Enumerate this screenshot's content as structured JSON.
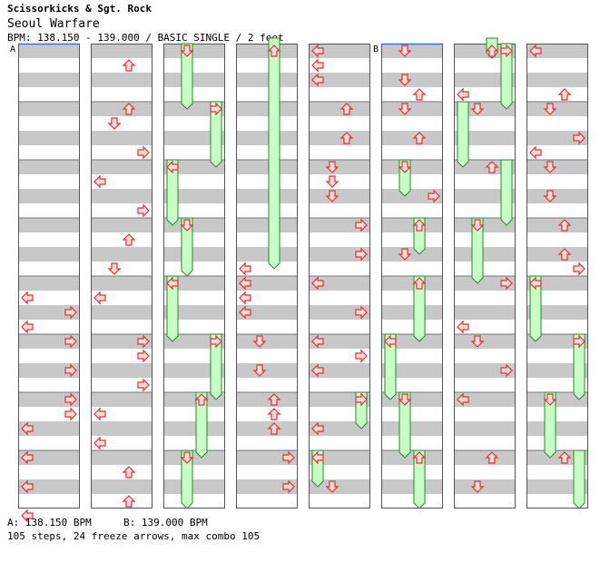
{
  "header": {
    "artist": "Scissorkicks & Sgt. Rock",
    "title": "Seoul Warfare",
    "info": "BPM: 138.150 - 139.000 / BASIC SINGLE / 2 feet"
  },
  "footer": {
    "bpm_a": "A: 138.150 BPM",
    "bpm_b": "B: 139.000 BPM",
    "stats": "105 steps, 24 freeze arrows, max combo 105"
  },
  "markers": [
    {
      "label": "A",
      "column": 0,
      "beat": 0
    },
    {
      "label": "B",
      "column": 5,
      "beat": 0
    }
  ],
  "colors": {
    "stripe": "#c8c8c8",
    "column_border": "#555555",
    "arrow_fill": "#ffdcdc",
    "arrow_stroke": "#e03030",
    "freeze_fill": "#c8ffc8",
    "freeze_stroke": "#2a8a2a",
    "bpm_line": "#3a6fd8"
  },
  "chart_data": {
    "type": "step-chart",
    "lanes": [
      "left",
      "down",
      "up",
      "right"
    ],
    "columns": 8,
    "beats_per_column": 32,
    "measures_per_column": 8,
    "notes": [
      {
        "c": 0,
        "lane": "left",
        "beat": 17
      },
      {
        "c": 0,
        "lane": "right",
        "beat": 18
      },
      {
        "c": 0,
        "lane": "left",
        "beat": 19
      },
      {
        "c": 0,
        "lane": "right",
        "beat": 20
      },
      {
        "c": 0,
        "lane": "right",
        "beat": 22
      },
      {
        "c": 0,
        "lane": "right",
        "beat": 24
      },
      {
        "c": 0,
        "lane": "right",
        "beat": 25
      },
      {
        "c": 0,
        "lane": "left",
        "beat": 26
      },
      {
        "c": 0,
        "lane": "left",
        "beat": 28
      },
      {
        "c": 0,
        "lane": "left",
        "beat": 30
      },
      {
        "c": 0,
        "lane": "left",
        "beat": 32
      },
      {
        "c": 1,
        "lane": "up",
        "beat": 1
      },
      {
        "c": 1,
        "lane": "up",
        "beat": 4
      },
      {
        "c": 1,
        "lane": "down",
        "beat": 5
      },
      {
        "c": 1,
        "lane": "right",
        "beat": 7
      },
      {
        "c": 1,
        "lane": "left",
        "beat": 9
      },
      {
        "c": 1,
        "lane": "right",
        "beat": 11
      },
      {
        "c": 1,
        "lane": "up",
        "beat": 13
      },
      {
        "c": 1,
        "lane": "down",
        "beat": 15
      },
      {
        "c": 1,
        "lane": "left",
        "beat": 17
      },
      {
        "c": 1,
        "lane": "right",
        "beat": 20
      },
      {
        "c": 1,
        "lane": "right",
        "beat": 21
      },
      {
        "c": 1,
        "lane": "right",
        "beat": 23
      },
      {
        "c": 1,
        "lane": "left",
        "beat": 25
      },
      {
        "c": 1,
        "lane": "left",
        "beat": 27
      },
      {
        "c": 1,
        "lane": "up",
        "beat": 29
      },
      {
        "c": 1,
        "lane": "up",
        "beat": 31
      },
      {
        "c": 2,
        "lane": "down",
        "beat": 0
      },
      {
        "c": 2,
        "lane": "right",
        "beat": 4
      },
      {
        "c": 2,
        "lane": "left",
        "beat": 8
      },
      {
        "c": 2,
        "lane": "down",
        "beat": 12
      },
      {
        "c": 2,
        "lane": "left",
        "beat": 16
      },
      {
        "c": 2,
        "lane": "right",
        "beat": 20
      },
      {
        "c": 2,
        "lane": "up",
        "beat": 24
      },
      {
        "c": 2,
        "lane": "down",
        "beat": 28
      },
      {
        "c": 3,
        "lane": "up",
        "beat": 0
      },
      {
        "c": 3,
        "lane": "left",
        "beat": 15
      },
      {
        "c": 3,
        "lane": "left",
        "beat": 16
      },
      {
        "c": 3,
        "lane": "left",
        "beat": 17
      },
      {
        "c": 3,
        "lane": "left",
        "beat": 18
      },
      {
        "c": 3,
        "lane": "down",
        "beat": 20
      },
      {
        "c": 3,
        "lane": "down",
        "beat": 22
      },
      {
        "c": 3,
        "lane": "up",
        "beat": 24
      },
      {
        "c": 3,
        "lane": "up",
        "beat": 25
      },
      {
        "c": 3,
        "lane": "up",
        "beat": 26
      },
      {
        "c": 3,
        "lane": "right",
        "beat": 28
      },
      {
        "c": 3,
        "lane": "right",
        "beat": 30
      },
      {
        "c": 4,
        "lane": "left",
        "beat": 0
      },
      {
        "c": 4,
        "lane": "left",
        "beat": 1
      },
      {
        "c": 4,
        "lane": "left",
        "beat": 2
      },
      {
        "c": 4,
        "lane": "up",
        "beat": 4
      },
      {
        "c": 4,
        "lane": "up",
        "beat": 6
      },
      {
        "c": 4,
        "lane": "down",
        "beat": 8
      },
      {
        "c": 4,
        "lane": "down",
        "beat": 9
      },
      {
        "c": 4,
        "lane": "down",
        "beat": 10
      },
      {
        "c": 4,
        "lane": "right",
        "beat": 12
      },
      {
        "c": 4,
        "lane": "right",
        "beat": 14
      },
      {
        "c": 4,
        "lane": "left",
        "beat": 16
      },
      {
        "c": 4,
        "lane": "right",
        "beat": 18
      },
      {
        "c": 4,
        "lane": "left",
        "beat": 20
      },
      {
        "c": 4,
        "lane": "right",
        "beat": 21
      },
      {
        "c": 4,
        "lane": "left",
        "beat": 22
      },
      {
        "c": 4,
        "lane": "right",
        "beat": 24
      },
      {
        "c": 4,
        "lane": "left",
        "beat": 26
      },
      {
        "c": 4,
        "lane": "left",
        "beat": 28
      },
      {
        "c": 4,
        "lane": "down",
        "beat": 30
      },
      {
        "c": 5,
        "lane": "down",
        "beat": 0
      },
      {
        "c": 5,
        "lane": "down",
        "beat": 2
      },
      {
        "c": 5,
        "lane": "up",
        "beat": 3
      },
      {
        "c": 5,
        "lane": "down",
        "beat": 4
      },
      {
        "c": 5,
        "lane": "up",
        "beat": 6
      },
      {
        "c": 5,
        "lane": "down",
        "beat": 8
      },
      {
        "c": 5,
        "lane": "right",
        "beat": 10
      },
      {
        "c": 5,
        "lane": "up",
        "beat": 12
      },
      {
        "c": 5,
        "lane": "down",
        "beat": 14
      },
      {
        "c": 5,
        "lane": "up",
        "beat": 16
      },
      {
        "c": 5,
        "lane": "left",
        "beat": 20
      },
      {
        "c": 5,
        "lane": "down",
        "beat": 24
      },
      {
        "c": 5,
        "lane": "up",
        "beat": 28
      },
      {
        "c": 6,
        "lane": "up",
        "beat": 0
      },
      {
        "c": 6,
        "lane": "right",
        "beat": 0
      },
      {
        "c": 6,
        "lane": "left",
        "beat": 3
      },
      {
        "c": 6,
        "lane": "down",
        "beat": 4
      },
      {
        "c": 6,
        "lane": "up",
        "beat": 8
      },
      {
        "c": 6,
        "lane": "down",
        "beat": 12
      },
      {
        "c": 6,
        "lane": "right",
        "beat": 16
      },
      {
        "c": 6,
        "lane": "left",
        "beat": 19
      },
      {
        "c": 6,
        "lane": "down",
        "beat": 20
      },
      {
        "c": 6,
        "lane": "right",
        "beat": 22
      },
      {
        "c": 6,
        "lane": "left",
        "beat": 24
      },
      {
        "c": 6,
        "lane": "up",
        "beat": 28
      },
      {
        "c": 6,
        "lane": "down",
        "beat": 30
      },
      {
        "c": 7,
        "lane": "left",
        "beat": 0
      },
      {
        "c": 7,
        "lane": "up",
        "beat": 3
      },
      {
        "c": 7,
        "lane": "down",
        "beat": 4
      },
      {
        "c": 7,
        "lane": "right",
        "beat": 6
      },
      {
        "c": 7,
        "lane": "left",
        "beat": 7
      },
      {
        "c": 7,
        "lane": "down",
        "beat": 8
      },
      {
        "c": 7,
        "lane": "down",
        "beat": 10
      },
      {
        "c": 7,
        "lane": "up",
        "beat": 12
      },
      {
        "c": 7,
        "lane": "up",
        "beat": 14
      },
      {
        "c": 7,
        "lane": "right",
        "beat": 15
      },
      {
        "c": 7,
        "lane": "left",
        "beat": 16
      },
      {
        "c": 7,
        "lane": "right",
        "beat": 20
      },
      {
        "c": 7,
        "lane": "down",
        "beat": 24
      },
      {
        "c": 7,
        "lane": "up",
        "beat": 28
      }
    ],
    "freezes": [
      {
        "c": 2,
        "lane": "down",
        "start": 0,
        "end": 4.5
      },
      {
        "c": 2,
        "lane": "right",
        "start": 4,
        "end": 8.5
      },
      {
        "c": 2,
        "lane": "left",
        "start": 8,
        "end": 12.5
      },
      {
        "c": 2,
        "lane": "down",
        "start": 12,
        "end": 16
      },
      {
        "c": 2,
        "lane": "left",
        "start": 16,
        "end": 20.5
      },
      {
        "c": 2,
        "lane": "right",
        "start": 20,
        "end": 24.5
      },
      {
        "c": 2,
        "lane": "up",
        "start": 24,
        "end": 28.5
      },
      {
        "c": 2,
        "lane": "down",
        "start": 28,
        "end": 32
      },
      {
        "c": 3,
        "lane": "up",
        "start": -0.5,
        "end": 15.5
      },
      {
        "c": 4,
        "lane": "right",
        "start": 24,
        "end": 26.5
      },
      {
        "c": 4,
        "lane": "left",
        "start": 28,
        "end": 30.5
      },
      {
        "c": 5,
        "lane": "down",
        "start": 8,
        "end": 10.5
      },
      {
        "c": 5,
        "lane": "up",
        "start": 12,
        "end": 14.5
      },
      {
        "c": 5,
        "lane": "up",
        "start": 16,
        "end": 20.5
      },
      {
        "c": 5,
        "lane": "left",
        "start": 20,
        "end": 24.5
      },
      {
        "c": 5,
        "lane": "down",
        "start": 24,
        "end": 28.5
      },
      {
        "c": 5,
        "lane": "up",
        "start": 28,
        "end": 32
      },
      {
        "c": 6,
        "lane": "up",
        "start": -0.5,
        "end": 1
      },
      {
        "c": 6,
        "lane": "right",
        "start": 0,
        "end": 4.5
      },
      {
        "c": 6,
        "lane": "left",
        "start": 4,
        "end": 8.5
      },
      {
        "c": 6,
        "lane": "right",
        "start": 8,
        "end": 12.5
      },
      {
        "c": 6,
        "lane": "down",
        "start": 12,
        "end": 16.5
      },
      {
        "c": 7,
        "lane": "left",
        "start": 16,
        "end": 20.5
      },
      {
        "c": 7,
        "lane": "right",
        "start": 20,
        "end": 24.5
      },
      {
        "c": 7,
        "lane": "down",
        "start": 24,
        "end": 28.5
      },
      {
        "c": 7,
        "lane": "right",
        "start": 28,
        "end": 32
      }
    ]
  }
}
